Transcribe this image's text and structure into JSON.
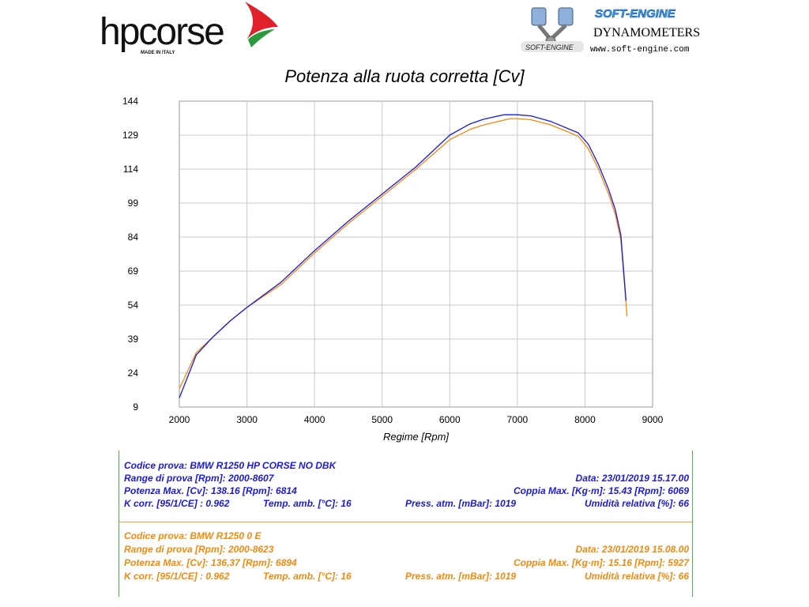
{
  "logos": {
    "left": {
      "text": "hpcorse",
      "subtext": "MADE IN ITALY"
    },
    "right": {
      "brand": "SOFT-ENGINE",
      "product": "DYNAMOMETERS",
      "url": "www.soft-engine.com",
      "badge": "SOFT-ENGINE"
    }
  },
  "chart_data": {
    "type": "line",
    "title": "Potenza alla ruota corretta [Cv]",
    "xlabel": "Regime [Rpm]",
    "ylabel": "",
    "xlim": [
      2000,
      9000
    ],
    "ylim": [
      9,
      144
    ],
    "xticks": [
      2000,
      3000,
      4000,
      5000,
      6000,
      7000,
      8000,
      9000
    ],
    "yticks": [
      9,
      24,
      39,
      54,
      69,
      84,
      99,
      114,
      129,
      144
    ],
    "grid": true,
    "series": [
      {
        "name": "BMW R1250 HP CORSE NO DBK",
        "color": "#1a1adc",
        "x": [
          2000,
          2250,
          2500,
          2750,
          3000,
          3500,
          4000,
          4500,
          5000,
          5500,
          6000,
          6300,
          6500,
          6800,
          7000,
          7200,
          7500,
          7900,
          8050,
          8200,
          8350,
          8450,
          8530,
          8607
        ],
        "y": [
          13,
          32,
          40,
          47,
          53,
          64,
          78,
          91,
          103,
          115,
          129,
          134,
          136,
          138,
          138,
          137.5,
          135,
          130,
          125,
          116,
          105,
          96,
          85,
          56
        ]
      },
      {
        "name": "BMW R1250 0 E",
        "color": "#f08a10",
        "x": [
          2000,
          2250,
          2500,
          2750,
          3000,
          3500,
          4000,
          4500,
          5000,
          5500,
          6000,
          6300,
          6500,
          6894,
          7000,
          7200,
          7500,
          7900,
          8050,
          8200,
          8350,
          8450,
          8530,
          8623
        ],
        "y": [
          17,
          33,
          40,
          47,
          53,
          63,
          77,
          90,
          102,
          114,
          127,
          131.5,
          133.5,
          136.3,
          136.3,
          135.8,
          133.5,
          128.5,
          123,
          114,
          103,
          94,
          83,
          49
        ]
      }
    ]
  },
  "info": {
    "test1": {
      "code": "Codice prova: BMW R1250 HP CORSE NO DBK",
      "range": "Range di prova [Rpm]: 2000-8607",
      "date": "Data: 23/01/2019   15.17.00",
      "power": "Potenza Max. [Cv]: 138.16   [Rpm]: 6814",
      "torque": "Coppia Max. [Kg·m]: 15.43   [Rpm]: 6069",
      "kcorr": "K corr. [95/1/CE] : 0.962",
      "temp": "Temp. amb. [°C]: 16",
      "press": "Press. atm. [mBar]: 1019",
      "humidity": "Umidità relativa [%]: 66"
    },
    "test2": {
      "code": "Codice prova: BMW R1250 0 E",
      "range": "Range di prova [Rpm]: 2000-8623",
      "date": "Data: 23/01/2019   15.08.00",
      "power": "Potenza Max. [Cv]: 136,37   [Rpm]: 6894",
      "torque": "Coppia Max. [Kg·m]: 15.16   [Rpm]: 5927",
      "kcorr": "K corr. [95/1/CE] : 0.962",
      "temp": "Temp. amb. [°C]: 16",
      "press": "Press. atm. [mBar]: 1019",
      "humidity": "Umidità relativa [%]: 66"
    }
  }
}
